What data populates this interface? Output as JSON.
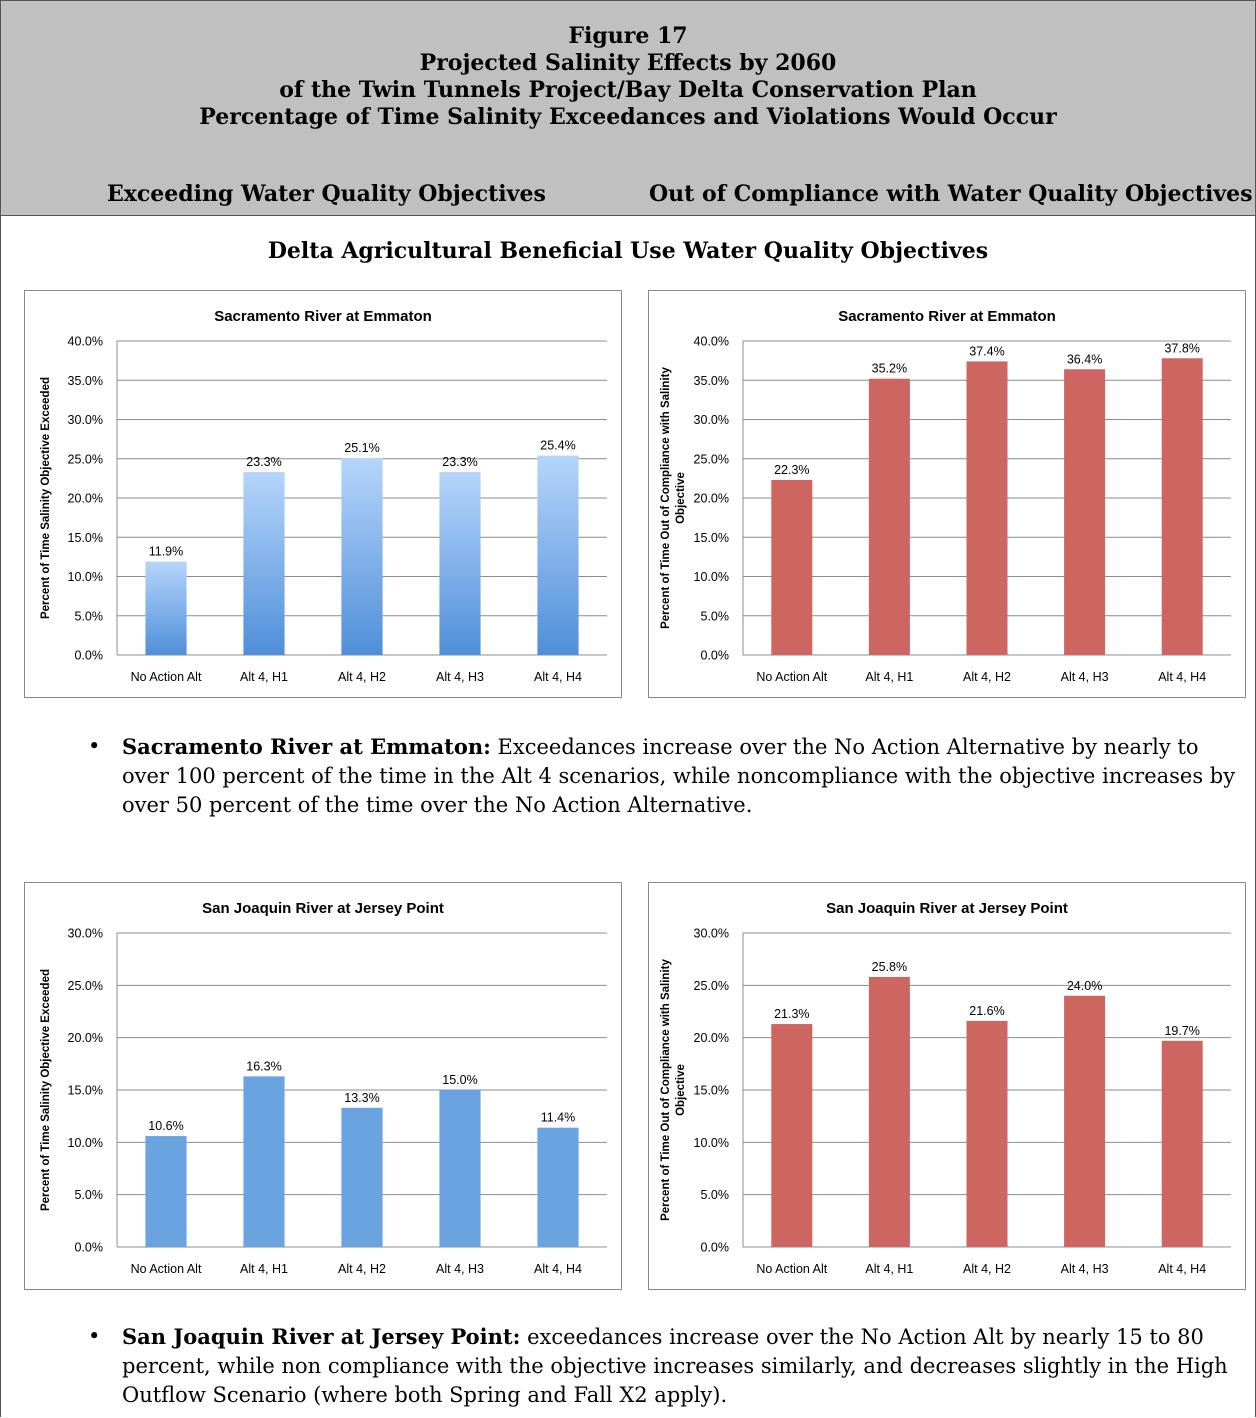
{
  "header": {
    "lines": [
      "Figure 17",
      "Projected Salinity Effects by 2060",
      "of the Twin Tunnels Project/Bay Delta Conservation Plan",
      "Percentage of Time Salinity Exceedances and Violations Would Occur"
    ],
    "left_column": "Exceeding Water Quality Objectives",
    "right_column": "Out of Compliance with Water Quality Objectives"
  },
  "section_title": "Delta Agricultural Beneficial Use Water Quality Objectives",
  "bullets": [
    {
      "bold": "Sacramento River at Emmaton:",
      "text": " Exceedances increase over the No Action Alternative by nearly to over 100 percent of the time in the Alt 4 scenarios, while noncompliance with the objective increases by over 50 percent of the time over the No Action Alternative."
    },
    {
      "bold": "San Joaquin River at Jersey Point:",
      "text": " exceedances increase over the No Action Alt by nearly 15 to 80 percent, while non compliance with the objective increases similarly, and decreases slightly in the High Outflow Scenario (where both Spring and Fall X2 apply)."
    }
  ],
  "colors": {
    "blue": "#6aa4e0",
    "blue_light": "#b6d5fb",
    "red": "#cd6561",
    "grid": "#8c8c8c"
  },
  "chart_data": [
    {
      "type": "bar",
      "title": "Sacramento River at Emmaton",
      "categories": [
        "No Action Alt",
        "Alt 4, H1",
        "Alt 4, H2",
        "Alt 4, H3",
        "Alt 4, H4"
      ],
      "values": [
        11.9,
        23.3,
        25.1,
        23.3,
        25.4
      ],
      "data_labels": [
        "11.9%",
        "23.3%",
        "25.1%",
        "23.3%",
        "25.4%"
      ],
      "ylabel": [
        "Percent of Time Salinity Objective Exceeded"
      ],
      "ylim": [
        0,
        40
      ],
      "yticks": [
        "0.0%",
        "5.0%",
        "10.0%",
        "15.0%",
        "20.0%",
        "25.0%",
        "30.0%",
        "35.0%",
        "40.0%"
      ],
      "color": "gradient-blue",
      "grid": true
    },
    {
      "type": "bar",
      "title": "Sacramento River at Emmaton",
      "categories": [
        "No Action Alt",
        "Alt 4, H1",
        "Alt 4, H2",
        "Alt 4, H3",
        "Alt 4, H4"
      ],
      "values": [
        22.3,
        35.2,
        37.4,
        36.4,
        37.8
      ],
      "data_labels": [
        "22.3%",
        "35.2%",
        "37.4%",
        "36.4%",
        "37.8%"
      ],
      "ylabel": [
        "Percent of Time Out of Compliance with Salinity",
        "Objective"
      ],
      "ylim": [
        0,
        40
      ],
      "yticks": [
        "0.0%",
        "5.0%",
        "10.0%",
        "15.0%",
        "20.0%",
        "25.0%",
        "30.0%",
        "35.0%",
        "40.0%"
      ],
      "color": "red",
      "grid": true
    },
    {
      "type": "bar",
      "title": "San Joaquin River at Jersey Point",
      "categories": [
        "No Action Alt",
        "Alt 4, H1",
        "Alt 4, H2",
        "Alt 4, H3",
        "Alt 4, H4"
      ],
      "values": [
        10.6,
        16.3,
        13.3,
        15.0,
        11.4
      ],
      "data_labels": [
        "10.6%",
        "16.3%",
        "13.3%",
        "15.0%",
        "11.4%"
      ],
      "ylabel": [
        "Percent of Time Salinity Objective Exceeded"
      ],
      "ylim": [
        0,
        30
      ],
      "yticks": [
        "0.0%",
        "5.0%",
        "10.0%",
        "15.0%",
        "20.0%",
        "25.0%",
        "30.0%"
      ],
      "color": "blue",
      "grid": true
    },
    {
      "type": "bar",
      "title": "San Joaquin River at Jersey Point",
      "categories": [
        "No Action Alt",
        "Alt 4, H1",
        "Alt 4, H2",
        "Alt 4, H3",
        "Alt 4, H4"
      ],
      "values": [
        21.3,
        25.8,
        21.6,
        24.0,
        19.7
      ],
      "data_labels": [
        "21.3%",
        "25.8%",
        "21.6%",
        "24.0%",
        "19.7%"
      ],
      "ylabel": [
        "Percent of Time Out of Compliance with Salinity",
        "Objective"
      ],
      "ylim": [
        0,
        30
      ],
      "yticks": [
        "0.0%",
        "5.0%",
        "10.0%",
        "15.0%",
        "20.0%",
        "25.0%",
        "30.0%"
      ],
      "color": "red",
      "grid": true
    }
  ]
}
